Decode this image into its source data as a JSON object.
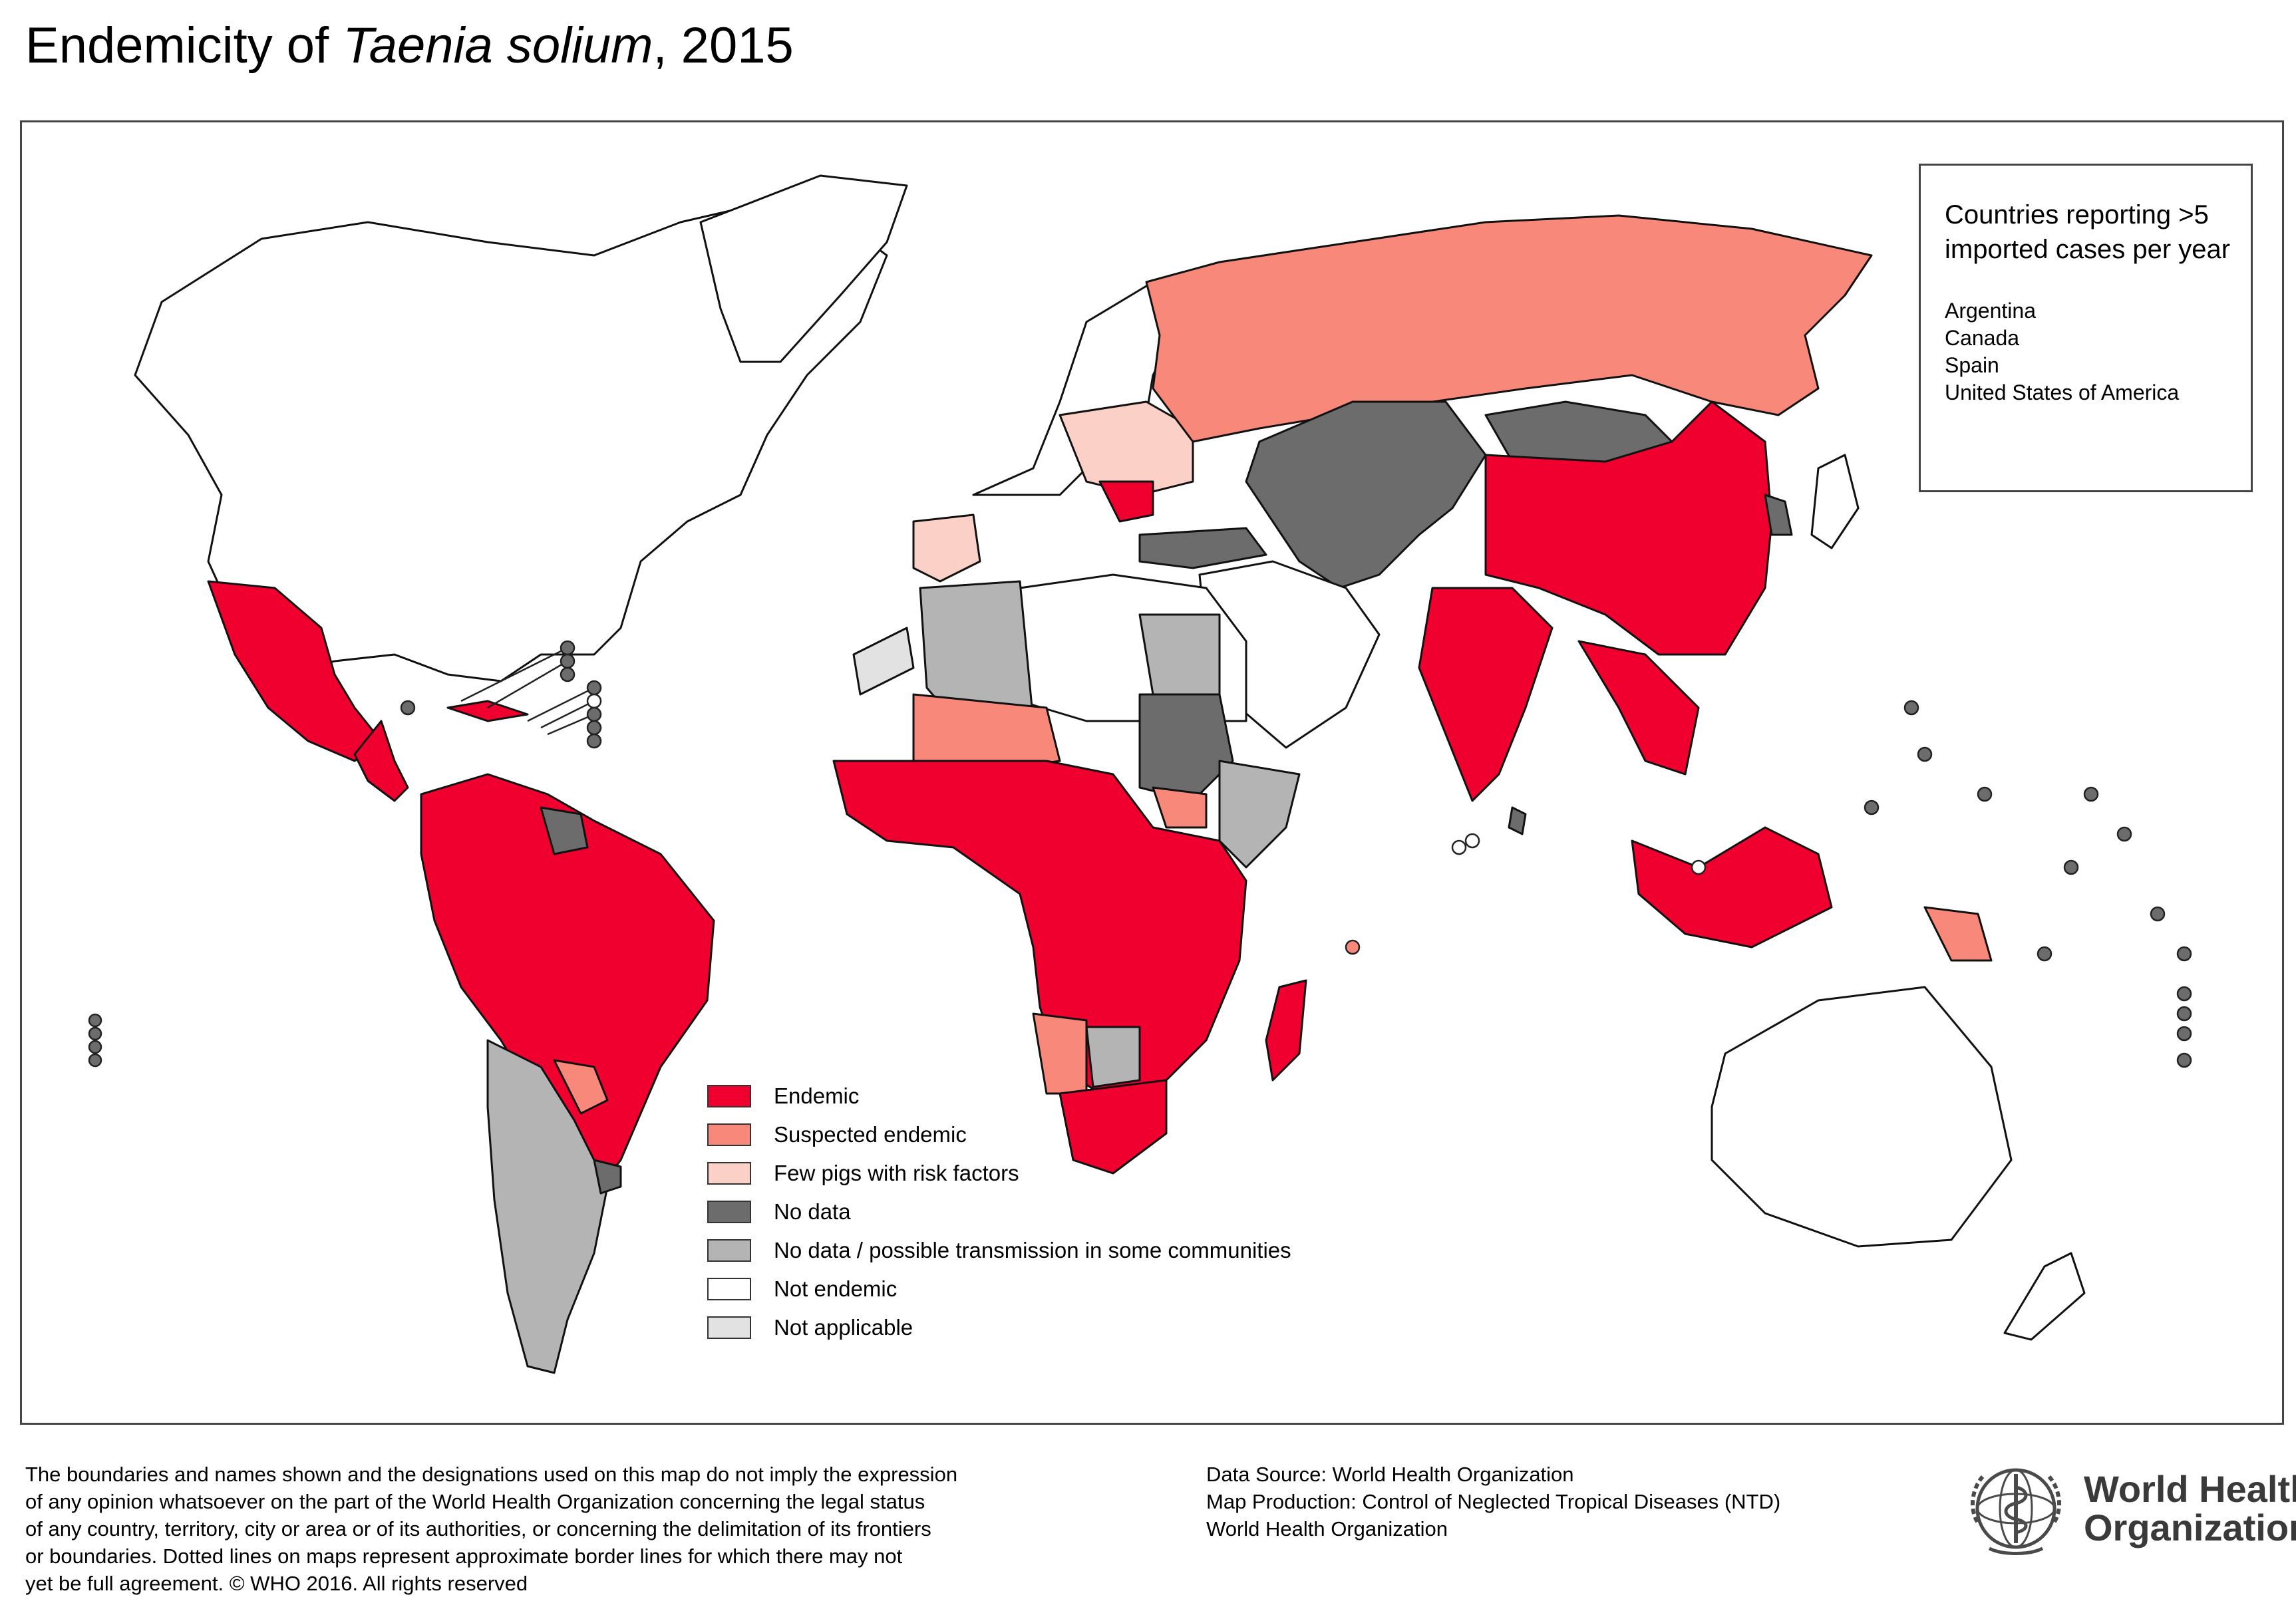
{
  "title": {
    "prefix": "Endemicity of ",
    "italic": "Taenia solium",
    "suffix": ", 2015"
  },
  "colors": {
    "endemic": "#f0002e",
    "suspected_endemic": "#f8887a",
    "few_pigs": "#fbd0c6",
    "no_data": "#6c6c6c",
    "no_data_possible": "#b4b4b4",
    "not_endemic": "#ffffff",
    "not_applicable": "#e2e2e2",
    "border": "#111111"
  },
  "legend": [
    {
      "label": "Endemic",
      "color": "#f0002e"
    },
    {
      "label": "Suspected endemic",
      "color": "#f8887a"
    },
    {
      "label": "Few pigs with risk factors",
      "color": "#fbd0c6"
    },
    {
      "label": "No data",
      "color": "#6c6c6c"
    },
    {
      "label": "No data / possible transmission in some communities",
      "color": "#b4b4b4"
    },
    {
      "label": "Not endemic",
      "color": "#ffffff"
    },
    {
      "label": "Not applicable",
      "color": "#e2e2e2"
    }
  ],
  "imported_box": {
    "title": "Countries reporting >5 imported cases per year",
    "countries": [
      "Argentina",
      "Canada",
      "Spain",
      "United States of America"
    ]
  },
  "disclaimer": [
    "The boundaries and names shown and the designations used on this map do not imply the expression",
    "of any opinion whatsoever on the part of the World Health Organization concerning the legal status",
    "of any country, territory, city or area or of its authorities, or concerning the delimitation of its frontiers",
    "or boundaries. Dotted lines on maps represent approximate border lines for which there may not",
    "yet be full agreement. © WHO 2016. All rights reserved"
  ],
  "credits": [
    "Data Source: World Health Organization",
    "Map Production: Control of Neglected Tropical Diseases (NTD)",
    "World Health Organization"
  ],
  "logo": {
    "name_line1": "World Health",
    "name_line2": "Organization",
    "icon": "who-emblem-icon"
  }
}
